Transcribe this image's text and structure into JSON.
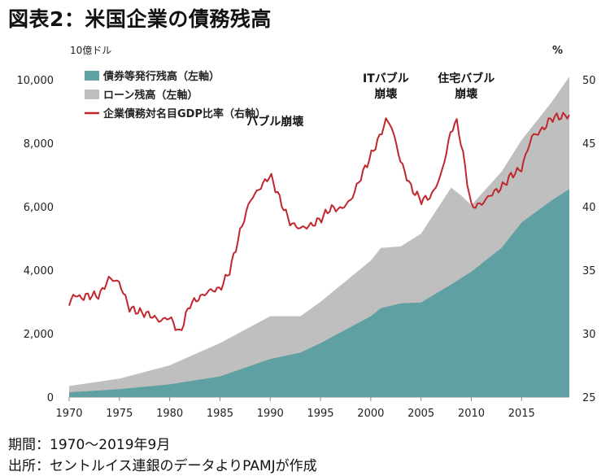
{
  "title": "図表2：米国企業の債務残高",
  "footer": {
    "period": "期間：1970～2019年9月",
    "source": "出所：セントルイス連銀のデータよりPAMJが作成"
  },
  "chart_data": {
    "type": "area",
    "y_left_unit": "10億ドル",
    "y_right_unit": "%",
    "y_left_ticks": [
      "0",
      "2,000",
      "4,000",
      "6,000",
      "8,000",
      "10,000"
    ],
    "y_right_ticks": [
      "25",
      "30",
      "35",
      "40",
      "45",
      "50"
    ],
    "x_ticks": [
      "1970",
      "1975",
      "1980",
      "1985",
      "1990",
      "1995",
      "2000",
      "2005",
      "2010",
      "2015"
    ],
    "ylim_left": [
      0,
      10000
    ],
    "ylim_right": [
      25,
      50
    ],
    "xlim": [
      1970,
      2019.75
    ],
    "legend": {
      "position": "top-left",
      "entries": [
        "債券等発行残高（左軸）",
        "ローン残高（左軸）",
        "企業債務対名目GDP比率（右軸）"
      ]
    },
    "colors": {
      "bonds": "#5fa0a2",
      "loans": "#bfbfbf",
      "ratio": "#c0272d"
    },
    "annotations": [
      {
        "lines": [
          "バブル崩壊"
        ],
        "x": 1990.5,
        "y_right": 46.4
      },
      {
        "lines": [
          "ITバブル",
          "崩壊"
        ],
        "x": 2001.5,
        "y_right": 48.6
      },
      {
        "lines": [
          "住宅バブル",
          "崩壊"
        ],
        "x": 2009.5,
        "y_right": 48.6
      }
    ],
    "series": [
      {
        "name": "債券等発行残高（左軸）",
        "axis": "left",
        "x": [
          1970,
          1975,
          1980,
          1985,
          1990,
          1993,
          1995,
          2000,
          2001,
          2003,
          2005,
          2008,
          2010,
          2013,
          2015,
          2018,
          2019.75
        ],
        "values": [
          150,
          250,
          400,
          650,
          1200,
          1400,
          1700,
          2550,
          2800,
          2950,
          2980,
          3550,
          3950,
          4700,
          5500,
          6200,
          6550
        ]
      },
      {
        "name": "ローン残高（左軸）",
        "axis": "left",
        "x": [
          1970,
          1975,
          1980,
          1985,
          1990,
          1993,
          1995,
          2000,
          2001,
          2003,
          2005,
          2008,
          2009,
          2010,
          2013,
          2015,
          2018,
          2019.75
        ],
        "totals": [
          350,
          580,
          1000,
          1700,
          2550,
          2550,
          3000,
          4300,
          4700,
          4750,
          5150,
          6600,
          6350,
          6050,
          7100,
          8100,
          9300,
          10100
        ]
      },
      {
        "name": "企業債務対名目GDP比率（右軸）",
        "axis": "right",
        "x": [
          1970,
          1970.5,
          1971,
          1972,
          1973,
          1974,
          1975,
          1976,
          1977,
          1978,
          1979,
          1980,
          1981,
          1982,
          1984,
          1985,
          1986,
          1987,
          1988,
          1989,
          1990,
          1991,
          1992,
          1993,
          1994,
          1995,
          1996,
          1997,
          1998,
          1999,
          2000,
          2001,
          2001.5,
          2002,
          2003,
          2004,
          2005,
          2006,
          2007,
          2008,
          2008.5,
          2009,
          2010,
          2011,
          2012,
          2013,
          2014,
          2015,
          2016,
          2017,
          2018,
          2019.75
        ],
        "values": [
          32.2,
          33.2,
          32.8,
          33.0,
          33.0,
          34.4,
          34.0,
          32.0,
          31.7,
          31.5,
          31.0,
          31.3,
          30.0,
          32.3,
          33.4,
          33.5,
          35.0,
          38.0,
          40.5,
          41.5,
          42.5,
          40.5,
          38.7,
          38.3,
          38.5,
          39.0,
          39.9,
          39.8,
          40.5,
          42.3,
          44.0,
          45.7,
          46.8,
          46.5,
          43.5,
          41.5,
          40.5,
          40.8,
          42.5,
          46.0,
          46.8,
          45.0,
          40.0,
          40.2,
          41.0,
          41.5,
          42.5,
          43.0,
          45.5,
          46.0,
          47.0,
          47.2
        ]
      }
    ]
  }
}
